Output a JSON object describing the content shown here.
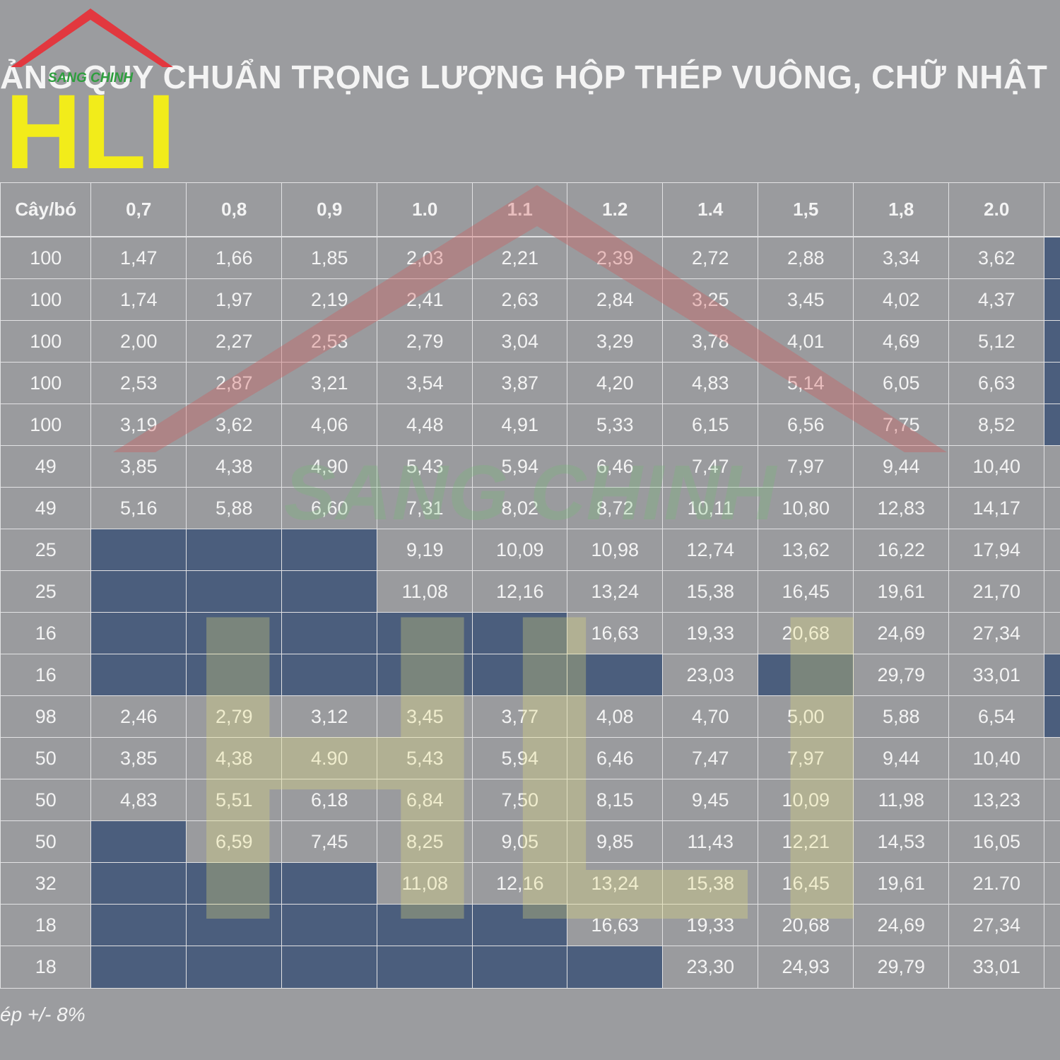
{
  "logo": {
    "brand": "SANG CHINH",
    "letters": "HLI"
  },
  "header": {
    "title": "ẢNG QUY CHUẨN TRỌNG LƯỢNG HỘP THÉP VUÔNG, CHỮ NHẬT"
  },
  "table": {
    "columns": [
      "Cây/bó",
      "0,7",
      "0,8",
      "0,9",
      "1.0",
      "1.1",
      "1.2",
      "1.4",
      "1,5",
      "1,8",
      "2.0"
    ],
    "rows": [
      [
        "100",
        "1,47",
        "1,66",
        "1,85",
        "2,03",
        "2,21",
        "2,39",
        "2,72",
        "2,88",
        "3,34",
        "3,62"
      ],
      [
        "100",
        "1,74",
        "1,97",
        "2,19",
        "2,41",
        "2,63",
        "2,84",
        "3,25",
        "3,45",
        "4,02",
        "4,37"
      ],
      [
        "100",
        "2,00",
        "2,27",
        "2,53",
        "2,79",
        "3,04",
        "3,29",
        "3,78",
        "4,01",
        "4,69",
        "5,12"
      ],
      [
        "100",
        "2,53",
        "2,87",
        "3,21",
        "3,54",
        "3,87",
        "4,20",
        "4,83",
        "5,14",
        "6,05",
        "6,63"
      ],
      [
        "100",
        "3,19",
        "3,62",
        "4,06",
        "4,48",
        "4,91",
        "5,33",
        "6,15",
        "6,56",
        "7,75",
        "8,52"
      ],
      [
        "49",
        "3,85",
        "4,38",
        "4,90",
        "5,43",
        "5,94",
        "6,46",
        "7,47",
        "7,97",
        "9,44",
        "10,40"
      ],
      [
        "49",
        "5,16",
        "5,88",
        "6,60",
        "7,31",
        "8,02",
        "8,72",
        "10,11",
        "10,80",
        "12,83",
        "14,17"
      ],
      [
        "25",
        null,
        null,
        null,
        "9,19",
        "10,09",
        "10,98",
        "12,74",
        "13,62",
        "16,22",
        "17,94"
      ],
      [
        "25",
        null,
        null,
        null,
        "11,08",
        "12,16",
        "13,24",
        "15,38",
        "16,45",
        "19,61",
        "21,70"
      ],
      [
        "16",
        null,
        null,
        null,
        null,
        null,
        "16,63",
        "19,33",
        "20,68",
        "24,69",
        "27,34"
      ],
      [
        "16",
        null,
        null,
        null,
        null,
        null,
        null,
        "23,03",
        null,
        "29,79",
        "33,01"
      ],
      [
        "98",
        "2,46",
        "2,79",
        "3,12",
        "3,45",
        "3,77",
        "4,08",
        "4,70",
        "5,00",
        "5,88",
        "6,54"
      ],
      [
        "50",
        "3,85",
        "4,38",
        "4.90",
        "5,43",
        "5,94",
        "6,46",
        "7,47",
        "7,97",
        "9,44",
        "10,40"
      ],
      [
        "50",
        "4,83",
        "5,51",
        "6,18",
        "6,84",
        "7,50",
        "8,15",
        "9,45",
        "10,09",
        "11,98",
        "13,23"
      ],
      [
        "50",
        null,
        "6,59",
        "7,45",
        "8,25",
        "9,05",
        "9,85",
        "11,43",
        "12,21",
        "14,53",
        "16,05"
      ],
      [
        "32",
        null,
        null,
        null,
        "11,08",
        "12,16",
        "13,24",
        "15,38",
        "16,45",
        "19,61",
        "21.70"
      ],
      [
        "18",
        null,
        null,
        null,
        null,
        null,
        "16,63",
        "19,33",
        "20,68",
        "24,69",
        "27,34"
      ],
      [
        "18",
        null,
        null,
        null,
        null,
        null,
        null,
        "23,30",
        "24,93",
        "29,79",
        "33,01"
      ]
    ]
  },
  "footer": {
    "note": "ép +/- 8%"
  }
}
